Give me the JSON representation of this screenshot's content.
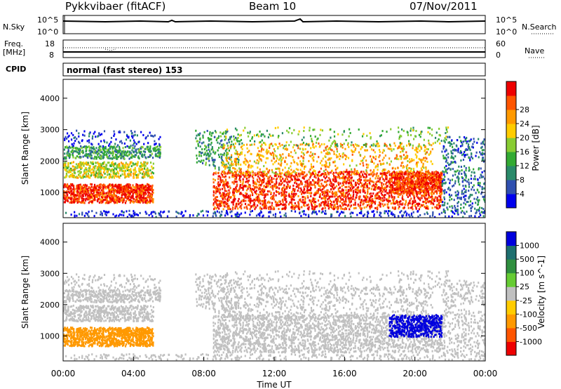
{
  "header": {
    "station": "Pykkvibaer (fitACF)",
    "beam": "Beam 10",
    "date": "07/Nov/2011"
  },
  "noise_panel": {
    "left_label": "N.Sky",
    "right_label": "N.Search",
    "left_ticks": [
      "10^5",
      "10^0"
    ],
    "right_ticks": [
      "10^5",
      "10^0"
    ]
  },
  "freq_panel": {
    "left_label_1": "Freq.",
    "left_label_2": "[MHz]",
    "left_ticks": [
      "18",
      "8"
    ],
    "right_label": "Nave",
    "right_ticks": [
      "60",
      "0"
    ]
  },
  "cpid": {
    "label": "CPID",
    "value": "normal (fast stereo) 153"
  },
  "chart_data": [
    {
      "type": "heatmap",
      "quantity": "Power",
      "ylabel": "Slant Range [km]",
      "yticks": [
        "1000",
        "2000",
        "3000",
        "4000"
      ],
      "ylim": [
        200,
        4600
      ],
      "colorbar_label": "Power [dB]",
      "colorbar_ticks": [
        "4",
        "8",
        "12",
        "16",
        "20",
        "24",
        "28"
      ],
      "colorbar_colors": [
        "#0000ee",
        "#3050b0",
        "#2a8a6a",
        "#33aa33",
        "#88cc33",
        "#ffcc00",
        "#ff9900",
        "#ff5500",
        "#ee0000"
      ]
    },
    {
      "type": "heatmap",
      "quantity": "Velocity",
      "ylabel": "Slant Range [km]",
      "yticks": [
        "1000",
        "2000",
        "3000",
        "4000"
      ],
      "ylim": [
        200,
        4600
      ],
      "colorbar_label": "Velocity [m s^-1]",
      "colorbar_ticks": [
        "1000",
        "500",
        "100",
        "25",
        "-25",
        "-100",
        "-500",
        "-1000"
      ],
      "colorbar_colors": [
        "#0000dd",
        "#1e6f6f",
        "#2f8f3f",
        "#66cc33",
        "#c0c0c0",
        "#ffcc00",
        "#ff9900",
        "#ff5500",
        "#ee0000"
      ]
    }
  ],
  "time_axis": {
    "ticks": [
      "00:00",
      "04:00",
      "08:00",
      "12:00",
      "16:00",
      "20:00",
      "00:00"
    ],
    "label": "Time UT"
  }
}
